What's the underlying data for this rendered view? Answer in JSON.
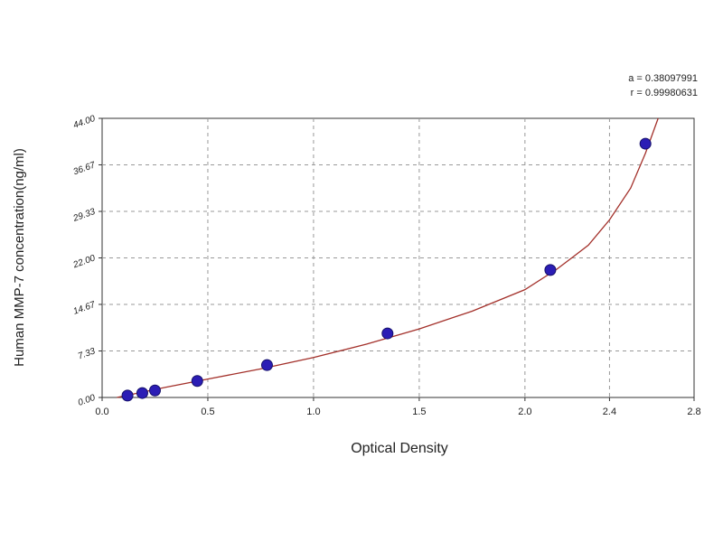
{
  "chart_data": {
    "type": "scatter",
    "x_label": "Optical Density",
    "y_label": "Human MMP-7 concentration(ng/ml)",
    "annotations": [
      "a = 0.38097991",
      "r = 0.99980631"
    ],
    "series": [
      {
        "x": [
          0.12,
          0.19,
          0.25,
          0.45,
          0.78,
          1.35,
          2.12,
          2.57
        ],
        "values": [
          0.3,
          0.7,
          1.1,
          2.6,
          5.1,
          10.1,
          20.1,
          40.0
        ],
        "color": "#2b1db5"
      }
    ],
    "curve": {
      "x": [
        0.07,
        0.3,
        0.5,
        0.75,
        1.0,
        1.25,
        1.5,
        1.75,
        2.0,
        2.15,
        2.3,
        2.4,
        2.5,
        2.57,
        2.63
      ],
      "values": [
        0,
        1.6,
        2.9,
        4.5,
        6.3,
        8.4,
        10.8,
        13.6,
        17.0,
        20.2,
        24.0,
        28.0,
        33.0,
        38.5,
        44.0
      ],
      "color": "#a3302a"
    },
    "xlim": [
      0,
      2.8
    ],
    "xticks": [
      {
        "value": 0,
        "label": "0.0"
      },
      0.5,
      {
        "value": 1,
        "label": "1.0"
      },
      1.5,
      {
        "value": 2,
        "label": "2.0"
      },
      2.4,
      2.8
    ],
    "ylim": [
      0,
      44
    ],
    "yticks": [
      {
        "value": 0,
        "label": "0.00"
      },
      7.33,
      14.67,
      {
        "value": 22,
        "label": "22.00"
      },
      29.33,
      36.67,
      {
        "value": 44,
        "label": "44.00"
      }
    ],
    "grid": true
  }
}
